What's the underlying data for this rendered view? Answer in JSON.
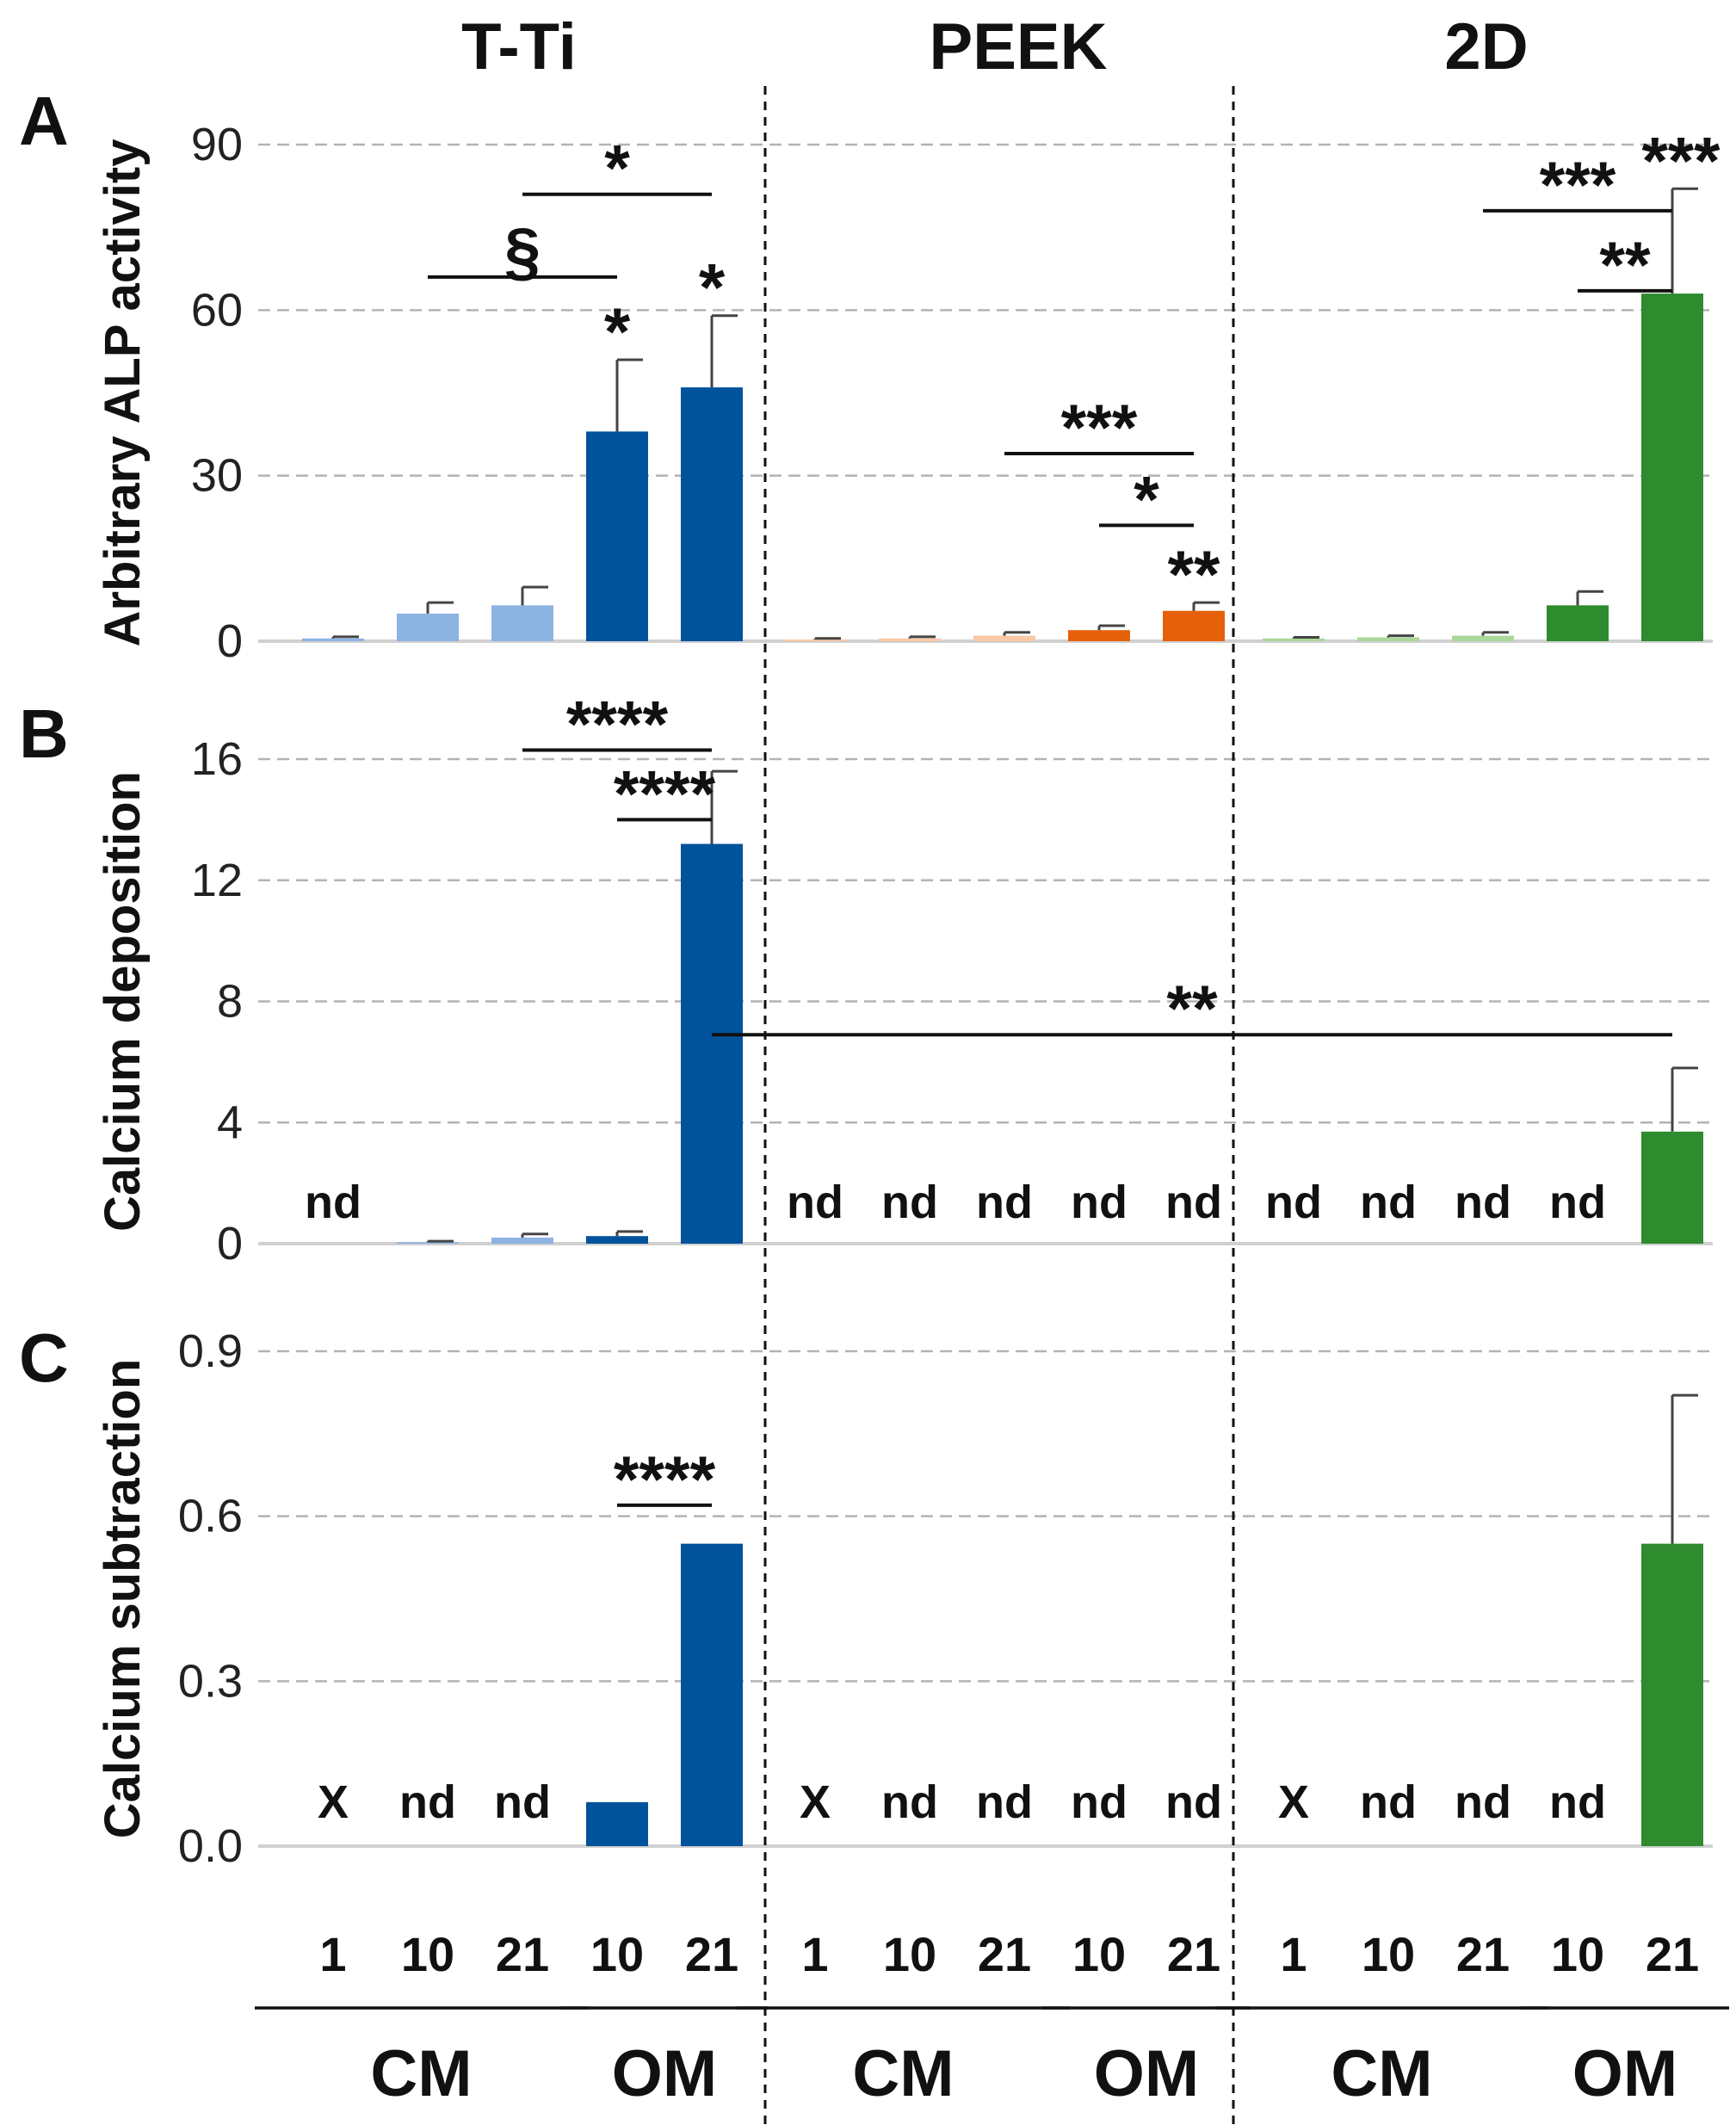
{
  "groups": [
    {
      "name": "T-Ti",
      "light": "#8db3e2",
      "dark": "#00529b"
    },
    {
      "name": "PEEK",
      "light": "#f9c8a6",
      "dark": "#e6600a"
    },
    {
      "name": "2D",
      "light": "#a9d89a",
      "dark": "#2e8b2e"
    }
  ],
  "x_labels": {
    "ticks": [
      "1",
      "10",
      "21",
      "10",
      "21"
    ],
    "media": [
      "CM",
      "OM"
    ]
  },
  "chart_data": [
    {
      "type": "bar",
      "panel": "A",
      "ylabel": "Arbitrary ALP activity",
      "yticks": [
        "0",
        "30",
        "60",
        "90"
      ],
      "ylim": [
        0,
        90
      ],
      "grid": true,
      "series": [
        {
          "name": "T-Ti",
          "values": [
            0.5,
            5,
            6.5,
            38,
            46
          ],
          "errors": [
            0.3,
            2,
            3.3,
            13,
            13
          ]
        },
        {
          "name": "PEEK",
          "values": [
            0.3,
            0.5,
            1,
            2,
            5.5
          ],
          "errors": [
            0.2,
            0.3,
            0.6,
            0.8,
            1.5
          ]
        },
        {
          "name": "2D",
          "values": [
            0.5,
            0.7,
            1,
            6.5,
            63
          ],
          "errors": [
            0.2,
            0.3,
            0.6,
            2.5,
            19
          ]
        }
      ],
      "nd_labels": [],
      "stars": [
        {
          "group": 0,
          "bar": 3,
          "text": "*"
        },
        {
          "group": 0,
          "bar": 4,
          "text": "*"
        },
        {
          "group": 1,
          "bar": 4,
          "text": "**"
        },
        {
          "group": 2,
          "bar": 4,
          "text": "***"
        }
      ],
      "brackets": [
        {
          "g1": 0,
          "b1": 1,
          "g2": 0,
          "b2": 3,
          "y": 66,
          "text": "§"
        },
        {
          "g1": 0,
          "b1": 2,
          "g2": 0,
          "b2": 4,
          "y": 81,
          "text": "*"
        },
        {
          "g1": 1,
          "b1": 2,
          "g2": 1,
          "b2": 4,
          "y": 34,
          "text": "***"
        },
        {
          "g1": 1,
          "b1": 3,
          "g2": 1,
          "b2": 4,
          "y": 21,
          "text": "*"
        },
        {
          "g1": 2,
          "b1": 2,
          "g2": 2,
          "b2": 4,
          "y": 78,
          "text": "***"
        },
        {
          "g1": 2,
          "b1": 3,
          "g2": 2,
          "b2": 4,
          "y": 63.5,
          "text": "**"
        }
      ]
    },
    {
      "type": "bar",
      "panel": "B",
      "ylabel": "Calcium deposition",
      "yticks": [
        "0",
        "4",
        "8",
        "12",
        "16"
      ],
      "ylim": [
        0,
        16
      ],
      "grid": true,
      "series": [
        {
          "name": "T-Ti",
          "values": [
            0,
            0.05,
            0.2,
            0.25,
            13.2
          ],
          "errors": [
            0,
            0.03,
            0.12,
            0.15,
            2.4
          ]
        },
        {
          "name": "PEEK",
          "values": [
            0,
            0,
            0,
            0,
            0
          ],
          "errors": [
            0,
            0,
            0,
            0,
            0
          ]
        },
        {
          "name": "2D",
          "values": [
            0,
            0,
            0,
            0,
            3.7
          ],
          "errors": [
            0,
            0,
            0,
            0,
            2.1
          ]
        }
      ],
      "nd_labels": [
        {
          "group": 0,
          "bar": 0,
          "text": "nd"
        },
        {
          "group": 1,
          "bar": 0,
          "text": "nd"
        },
        {
          "group": 1,
          "bar": 1,
          "text": "nd"
        },
        {
          "group": 1,
          "bar": 2,
          "text": "nd"
        },
        {
          "group": 1,
          "bar": 3,
          "text": "nd"
        },
        {
          "group": 1,
          "bar": 4,
          "text": "nd"
        },
        {
          "group": 2,
          "bar": 0,
          "text": "nd"
        },
        {
          "group": 2,
          "bar": 1,
          "text": "nd"
        },
        {
          "group": 2,
          "bar": 2,
          "text": "nd"
        },
        {
          "group": 2,
          "bar": 3,
          "text": "nd"
        }
      ],
      "stars": [],
      "brackets": [
        {
          "g1": 0,
          "b1": 2,
          "g2": 0,
          "b2": 4,
          "y": 16.3,
          "text": "****"
        },
        {
          "g1": 0,
          "b1": 3,
          "g2": 0,
          "b2": 4,
          "y": 14.0,
          "text": "****"
        },
        {
          "g1": 0,
          "b1": 4,
          "g2": 2,
          "b2": 4,
          "y": 6.9,
          "text": "**"
        }
      ]
    },
    {
      "type": "bar",
      "panel": "C",
      "ylabel": "Calcium subtraction",
      "yticks": [
        "0.0",
        "0.3",
        "0.6",
        "0.9"
      ],
      "ylim": [
        0,
        0.9
      ],
      "grid": true,
      "series": [
        {
          "name": "T-Ti",
          "values": [
            0,
            0,
            0,
            0.08,
            0.55
          ],
          "errors": [
            0,
            0,
            0,
            0,
            0
          ]
        },
        {
          "name": "PEEK",
          "values": [
            0,
            0,
            0,
            0,
            0
          ],
          "errors": [
            0,
            0,
            0,
            0,
            0
          ]
        },
        {
          "name": "2D",
          "values": [
            0,
            0,
            0,
            0,
            0.55
          ],
          "errors": [
            0,
            0,
            0,
            0,
            0.27
          ]
        }
      ],
      "nd_labels": [
        {
          "group": 0,
          "bar": 0,
          "text": "X"
        },
        {
          "group": 0,
          "bar": 1,
          "text": "nd"
        },
        {
          "group": 0,
          "bar": 2,
          "text": "nd"
        },
        {
          "group": 1,
          "bar": 0,
          "text": "X"
        },
        {
          "group": 1,
          "bar": 1,
          "text": "nd"
        },
        {
          "group": 1,
          "bar": 2,
          "text": "nd"
        },
        {
          "group": 1,
          "bar": 3,
          "text": "nd"
        },
        {
          "group": 1,
          "bar": 4,
          "text": "nd"
        },
        {
          "group": 2,
          "bar": 0,
          "text": "X"
        },
        {
          "group": 2,
          "bar": 1,
          "text": "nd"
        },
        {
          "group": 2,
          "bar": 2,
          "text": "nd"
        },
        {
          "group": 2,
          "bar": 3,
          "text": "nd"
        }
      ],
      "stars": [],
      "brackets": [
        {
          "g1": 0,
          "b1": 3,
          "g2": 0,
          "b2": 4,
          "y": 0.62,
          "text": "****"
        }
      ]
    }
  ]
}
